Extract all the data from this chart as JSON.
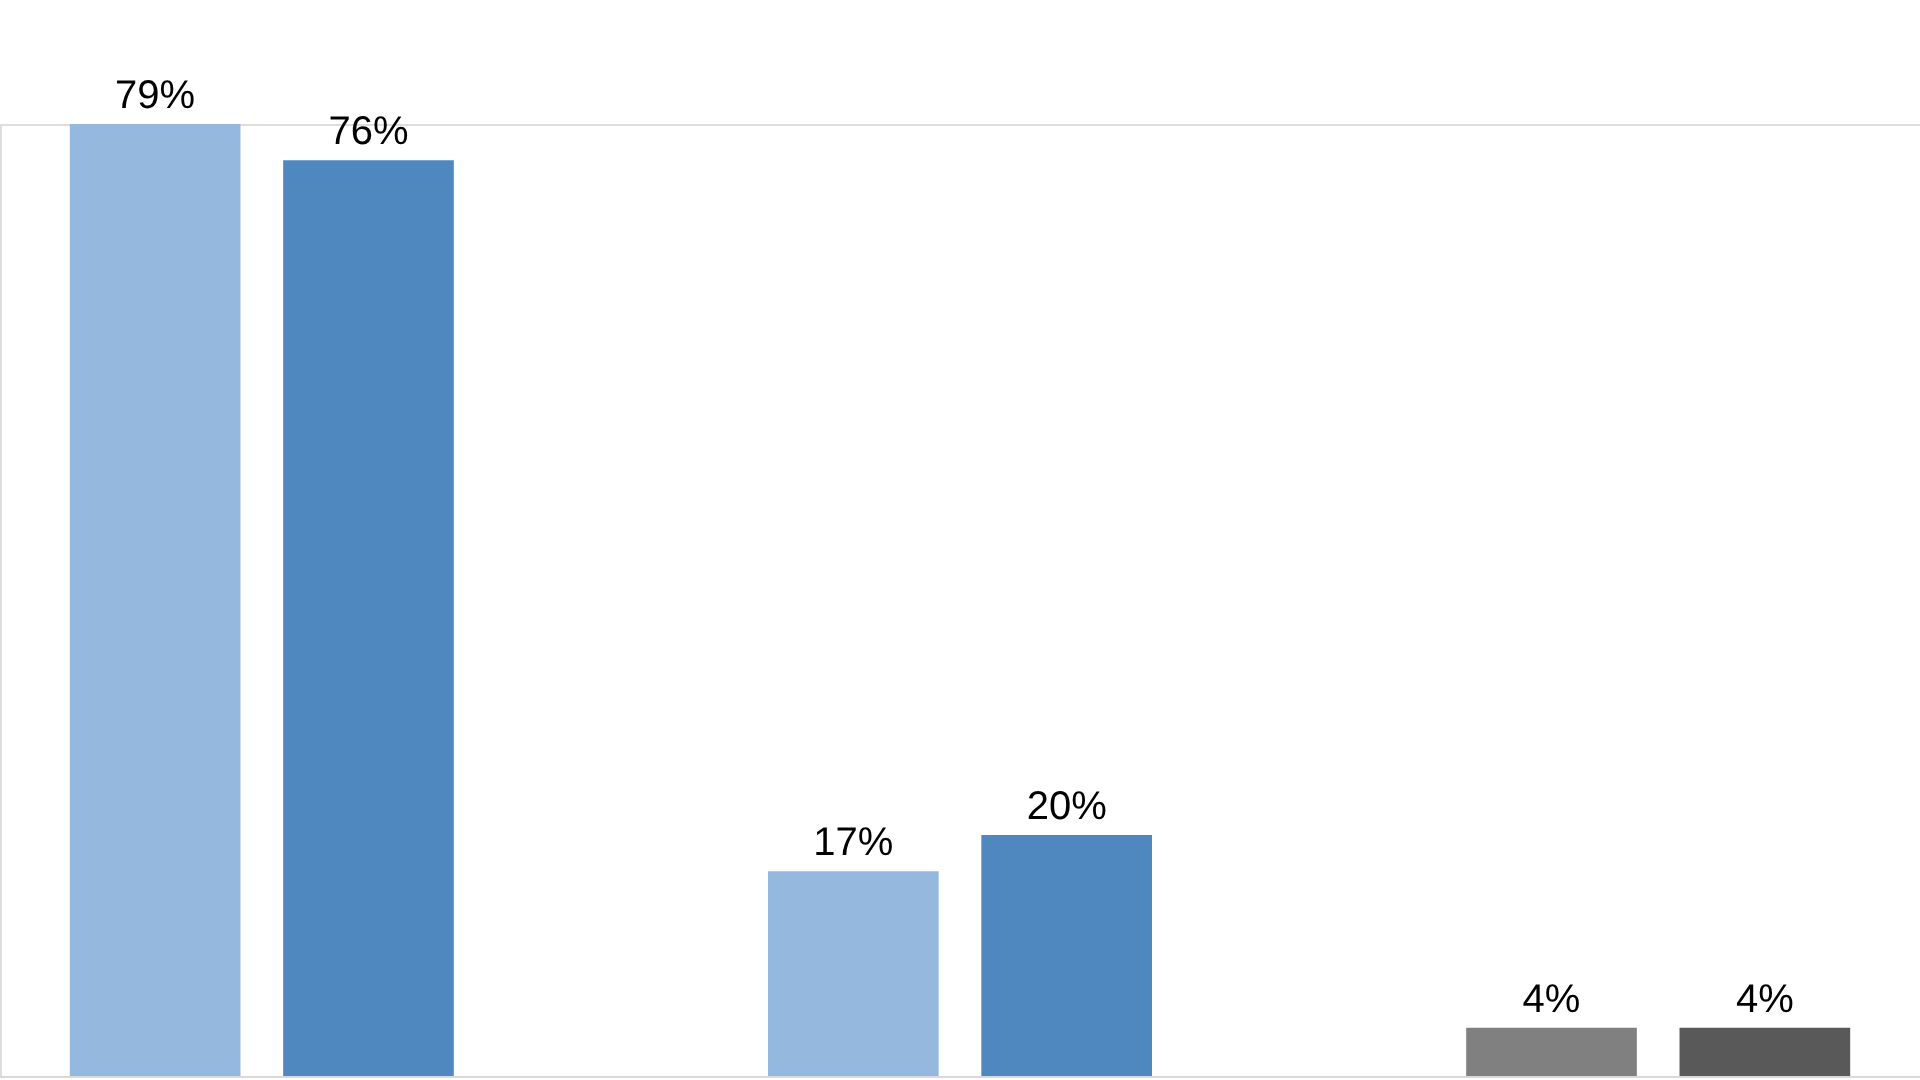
{
  "chart_data": {
    "type": "bar",
    "categories": [
      null,
      null,
      null
    ],
    "series": [
      {
        "colors": [
          "#95b8df",
          "#95b8df",
          "#808080"
        ],
        "values": [
          79,
          17,
          4
        ],
        "value_labels": [
          "79%",
          "17%",
          "4%"
        ]
      },
      {
        "colors": [
          "#4f88bf",
          "#4f88bf",
          "#595959"
        ],
        "values": [
          76,
          20,
          4
        ],
        "value_labels": [
          "76%",
          "20%",
          "4%"
        ]
      }
    ]
  }
}
